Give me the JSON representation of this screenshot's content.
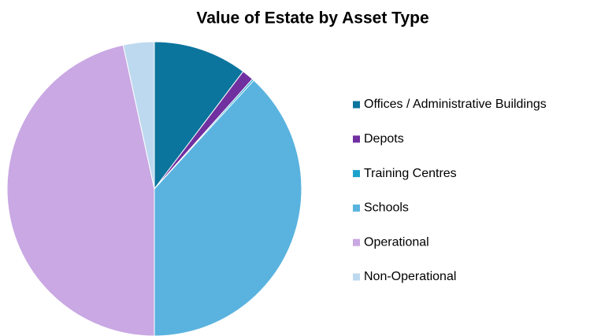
{
  "chart_data": {
    "type": "pie",
    "title": "Value of Estate by Asset Type",
    "categories": [
      "Offices / Administrative Buildings",
      "Depots",
      "Training  Centres",
      "Schools",
      "Operational",
      "Non-Operational"
    ],
    "values": [
      10.3,
      1.3,
      0.2,
      38.2,
      46.6,
      3.4
    ],
    "colors": [
      "#0b759d",
      "#7030a0",
      "#1ca3cc",
      "#5ab3df",
      "#c9a8e3",
      "#bdd9ef"
    ],
    "legend": "right"
  }
}
